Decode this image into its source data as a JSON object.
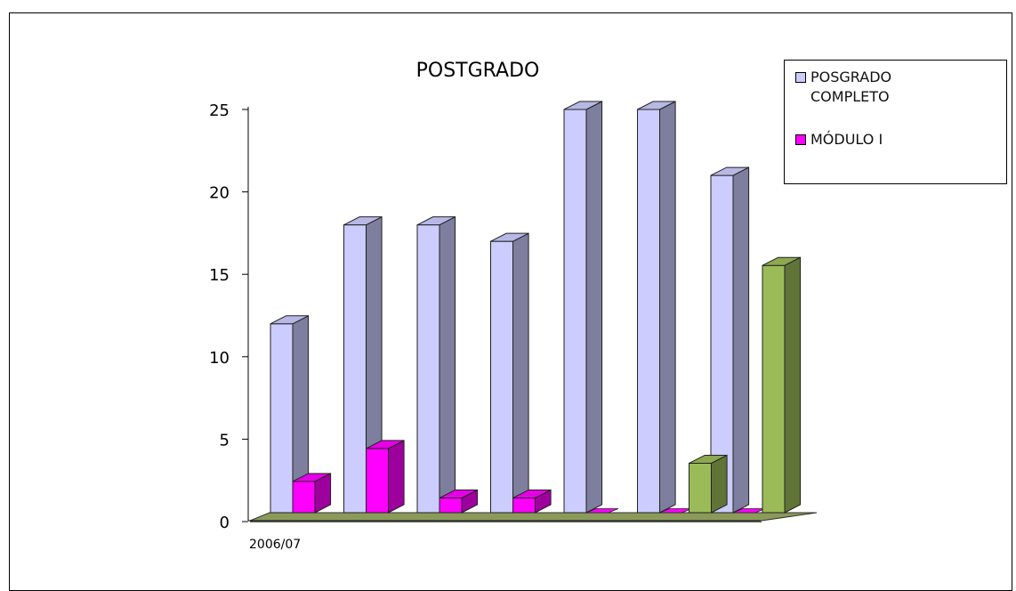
{
  "chart_data": {
    "type": "bar",
    "title": "POSTGRADO",
    "xlabel": "",
    "ylabel": "",
    "ylim": [
      0,
      25
    ],
    "yticks": [
      "0",
      "5",
      "10",
      "15",
      "20",
      "25"
    ],
    "categories": [
      "2006/07",
      "",
      "",
      "",
      "",
      "",
      ""
    ],
    "series": [
      {
        "name": "POSGRADO COMPLETO",
        "color": "#ccccff",
        "values": [
          12,
          18,
          18,
          17,
          25,
          25,
          21
        ]
      },
      {
        "name": "MÓDULO I",
        "color": "#ff00ff",
        "values": [
          2,
          4,
          1,
          1,
          0,
          0,
          0
        ]
      },
      {
        "name": "",
        "color": "#9bbb59",
        "values": [
          0,
          0,
          0,
          0,
          0,
          3,
          15
        ]
      }
    ],
    "grid": false,
    "legend": "top-right",
    "projection": "3d-column"
  },
  "legend": {
    "items": [
      {
        "label": "POSGRADO COMPLETO",
        "color": "#ccccff"
      },
      {
        "label": "MÓDULO I",
        "color": "#ff00ff"
      }
    ]
  }
}
